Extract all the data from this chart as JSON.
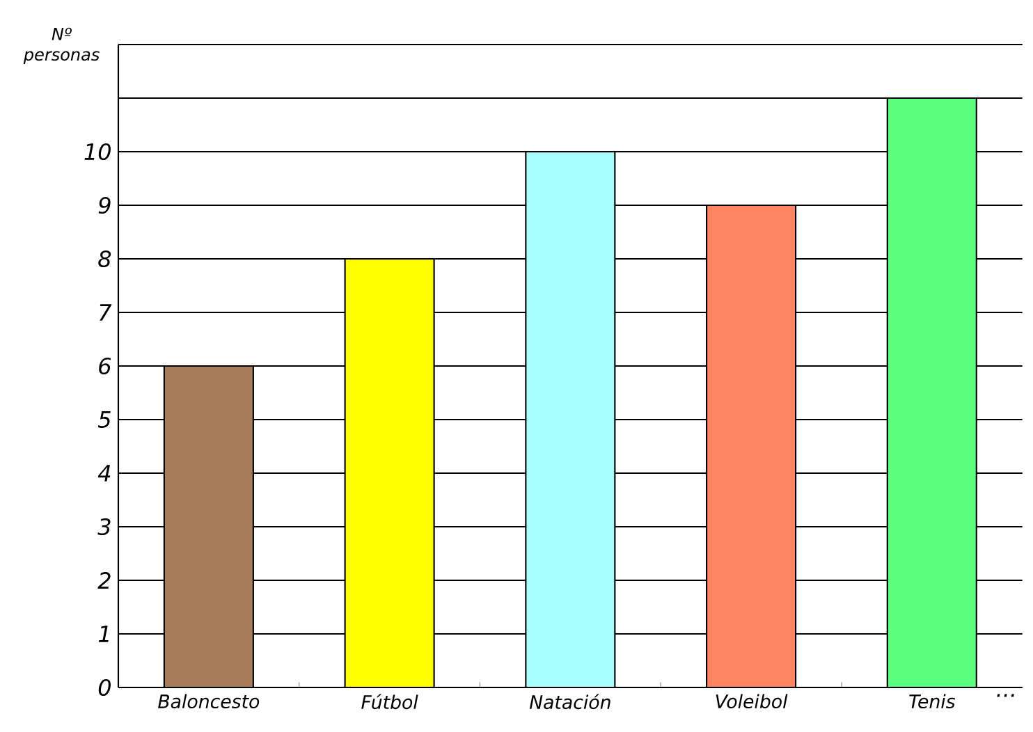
{
  "chart_data": {
    "type": "bar",
    "ylabel": "Nº personas",
    "categories": [
      "Baloncesto",
      "Fútbol",
      "Natación",
      "Voleibol",
      "Tenis"
    ],
    "values": [
      6,
      8,
      10,
      9,
      11
    ],
    "colors": [
      "#a67c5b",
      "#ffff00",
      "#aaffff",
      "#ff8462",
      "#5cff80"
    ],
    "ylim": [
      0,
      12
    ],
    "yticks": [
      0,
      1,
      2,
      3,
      4,
      5,
      6,
      7,
      8,
      9,
      10,
      {
        "value": 11,
        "label": null
      },
      {
        "value": 12,
        "label": null
      }
    ],
    "grid": "y",
    "annotations": [
      "···"
    ]
  }
}
